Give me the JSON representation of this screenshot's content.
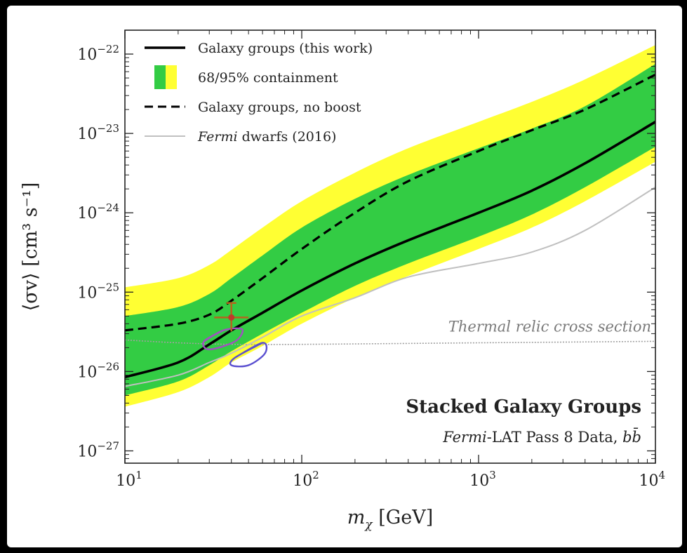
{
  "chart_data": {
    "type": "line",
    "title": "",
    "xlabel_var": "m",
    "xlabel_sub": "χ",
    "xlabel_unit": " [GeV]",
    "ylabel": "⟨σv⟩ [cm³ s⁻¹]",
    "xscale": "log",
    "yscale": "log",
    "xlim": [
      10,
      10000
    ],
    "ylim": [
      7e-28,
      2e-22
    ],
    "xticks": [
      {
        "value": 10,
        "base": "10",
        "exp": "1"
      },
      {
        "value": 100,
        "base": "10",
        "exp": "2"
      },
      {
        "value": 1000,
        "base": "10",
        "exp": "3"
      },
      {
        "value": 10000,
        "base": "10",
        "exp": "4"
      }
    ],
    "yticks": [
      {
        "value": 1e-27,
        "base": "10",
        "exp": "−27"
      },
      {
        "value": 1e-26,
        "base": "10",
        "exp": "−26"
      },
      {
        "value": 1e-25,
        "base": "10",
        "exp": "−25"
      },
      {
        "value": 1e-24,
        "base": "10",
        "exp": "−24"
      },
      {
        "value": 1e-23,
        "base": "10",
        "exp": "−23"
      },
      {
        "value": 1e-22,
        "base": "10",
        "exp": "−22"
      }
    ],
    "x": [
      10,
      20,
      30,
      40,
      60,
      100,
      200,
      400,
      1000,
      2000,
      4000,
      10000
    ],
    "series": [
      {
        "name": "Galaxy groups (this work)",
        "style": "solid",
        "color": "#000000",
        "values": [
          8.5e-27,
          1.3e-26,
          2.2e-26,
          3.3e-26,
          5.5e-26,
          1.05e-25,
          2.3e-25,
          4.5e-25,
          1e-24,
          1.9e-24,
          4.2e-24,
          1.4e-23
        ]
      },
      {
        "name": "Galaxy groups, no boost",
        "style": "dashed",
        "color": "#000000",
        "values": [
          3.3e-26,
          4e-26,
          5.2e-26,
          7.8e-26,
          1.5e-25,
          3.5e-25,
          1e-24,
          2.5e-24,
          6e-24,
          1.1e-23,
          2e-23,
          5.5e-23
        ]
      },
      {
        "name": "Fermi dwarfs (2016)",
        "style": "solid",
        "color": "#c0c0c0",
        "values": [
          6.5e-27,
          9e-27,
          1.3e-26,
          1.7e-26,
          2.7e-26,
          5e-26,
          8.5e-26,
          1.55e-25,
          2.3e-25,
          3.2e-25,
          6e-25,
          2.1e-24
        ]
      }
    ],
    "band_95": {
      "name": "95% containment",
      "color": "#ffff33",
      "lower": [
        3.6e-27,
        5.5e-27,
        8.5e-27,
        1.3e-26,
        2.1e-26,
        4e-26,
        8.5e-26,
        1.6e-25,
        3.5e-25,
        6.5e-25,
        1.4e-24,
        4.4e-24
      ],
      "upper": [
        1.15e-25,
        1.5e-25,
        2.2e-25,
        3.4e-25,
        6.5e-25,
        1.4e-24,
        3.2e-24,
        6.5e-24,
        1.4e-23,
        2.5e-23,
        4.8e-23,
        1.3e-22
      ]
    },
    "band_68": {
      "name": "68% containment",
      "color": "#33cc44",
      "lower": [
        5e-27,
        7.5e-27,
        1.2e-26,
        1.8e-26,
        3e-26,
        5.5e-26,
        1.2e-25,
        2.3e-25,
        5e-25,
        9.5e-25,
        2.1e-24,
        6.8e-24
      ],
      "upper": [
        5e-26,
        6.5e-26,
        9.5e-26,
        1.5e-25,
        2.9e-25,
        6.5e-25,
        1.5e-24,
        3e-24,
        6.5e-24,
        1.15e-23,
        2.2e-23,
        7.5e-23
      ]
    },
    "thermal_relic": {
      "label": "Thermal relic cross section",
      "color": "#a0a0a0",
      "x": [
        10,
        20,
        40,
        100,
        1000,
        10000
      ],
      "values": [
        2.5e-26,
        2.3e-26,
        2.2e-26,
        2.2e-26,
        2.3e-26,
        2.4e-26
      ]
    },
    "data_point": {
      "x": 40,
      "y": 4.8e-26,
      "xerr": [
        32,
        50
      ],
      "yerr": [
        3.2e-26,
        7.3e-26
      ],
      "color": "#b5651d"
    },
    "contours": [
      {
        "color": "#a050c0",
        "points": [
          [
            28,
            2.4e-26
          ],
          [
            36,
            3.3e-26
          ],
          [
            46,
            3.4e-26
          ],
          [
            42,
            2.4e-26
          ],
          [
            30,
            1.9e-26
          ]
        ]
      },
      {
        "color": "#5a4fd0",
        "points": [
          [
            42,
            1.5e-26
          ],
          [
            60,
            2.3e-26
          ],
          [
            62,
            1.7e-26
          ],
          [
            50,
            1.2e-26
          ],
          [
            40,
            1.2e-26
          ]
        ]
      }
    ],
    "legend": {
      "placement": "top-left",
      "entries": [
        {
          "label": "Galaxy groups (this work)",
          "kind": "solid"
        },
        {
          "label": "68/95% containment",
          "kind": "band"
        },
        {
          "label": "Galaxy groups, no boost",
          "kind": "dashed"
        },
        {
          "italic": "Fermi",
          "label": " dwarfs (2016)",
          "kind": "gray"
        }
      ]
    },
    "annotation": {
      "title": "Stacked Galaxy Groups",
      "sub_italic": "Fermi",
      "sub_text": "-LAT Pass 8 Data, ",
      "sub_channel": "bb̄"
    }
  }
}
